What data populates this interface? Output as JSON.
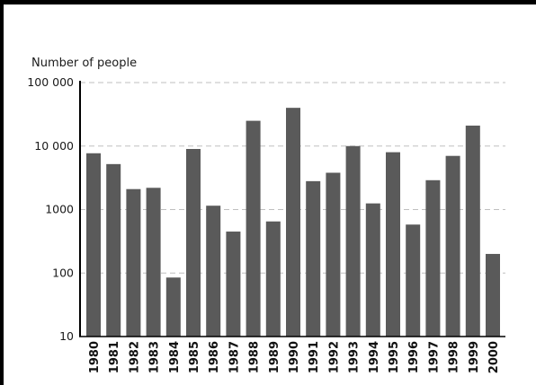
{
  "chart_data": {
    "type": "bar",
    "title": "",
    "xlabel": "",
    "ylabel": "Number of people",
    "yscale": "log",
    "ylim": [
      10,
      100000
    ],
    "yticks": [
      10,
      100,
      1000,
      10000,
      100000
    ],
    "ytick_labels": [
      "10",
      "100",
      "1000",
      "10 000",
      "100 000"
    ],
    "grid": "horizontal dashed at major ticks",
    "legend": "none",
    "categories": [
      "1980",
      "1981",
      "1982",
      "1983",
      "1984",
      "1985",
      "1986",
      "1987",
      "1988",
      "1989",
      "1990",
      "1991",
      "1992",
      "1993",
      "1994",
      "1995",
      "1996",
      "1997",
      "1998",
      "1999",
      "2000"
    ],
    "values": [
      7700,
      5200,
      2100,
      2200,
      85,
      9000,
      1150,
      450,
      25000,
      650,
      40000,
      2800,
      3800,
      10000,
      1250,
      8000,
      580,
      2900,
      7000,
      21000,
      200
    ],
    "colors": {
      "bar": "#5a5a5a",
      "grid": "#bfbfbf",
      "axis": "#000000"
    }
  }
}
